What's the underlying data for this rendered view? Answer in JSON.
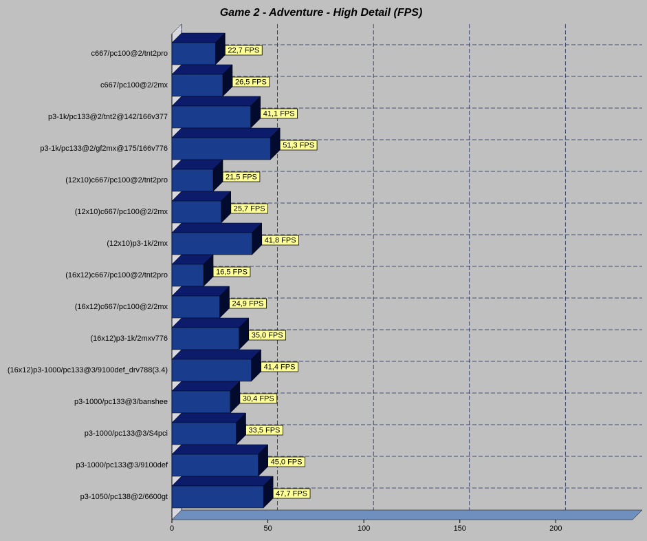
{
  "chart_data": {
    "type": "bar3d",
    "orientation": "horizontal",
    "title": "Game 2 - Adventure - High Detail (FPS)",
    "categories": [
      "c667/pc100@2/tnt2pro",
      "c667/pc100@2/2mx",
      "p3-1k/pc133@2/tnt2@142/166v377",
      "p3-1k/pc133@2/gf2mx@175/166v776",
      "(12x10)c667/pc100@2/tnt2pro",
      "(12x10)c667/pc100@2/2mx",
      "(12x10)p3-1k/2mx",
      "(16x12)c667/pc100@2/tnt2pro",
      "(16x12)c667/pc100@2/2mx",
      "(16x12)p3-1k/2mxv776",
      "(16x12)p3-1000/pc133@3/9100def_drv788(3.4)",
      "p3-1000/pc133@3/banshee",
      "p3-1000/pc133@3/S4pci",
      "p3-1000/pc133@3/9100def",
      "p3-1050/pc138@2/6600gt"
    ],
    "values": [
      22.7,
      26.5,
      41.1,
      51.3,
      21.5,
      25.7,
      41.8,
      16.5,
      24.9,
      35.0,
      41.4,
      30.4,
      33.5,
      45.0,
      47.7
    ],
    "value_labels": [
      "22,7 FPS",
      "26,5 FPS",
      "41,1 FPS",
      "51,3 FPS",
      "21,5 FPS",
      "25,7 FPS",
      "41,8 FPS",
      "16,5 FPS",
      "24,9 FPS",
      "35,0 FPS",
      "41,4 FPS",
      "30,4 FPS",
      "33,5 FPS",
      "45,0 FPS",
      "47,7 FPS"
    ],
    "color": "#1a3c8c",
    "xlim": [
      0,
      240
    ],
    "xticks": [
      0,
      50,
      100,
      150,
      200
    ],
    "grid": true
  }
}
